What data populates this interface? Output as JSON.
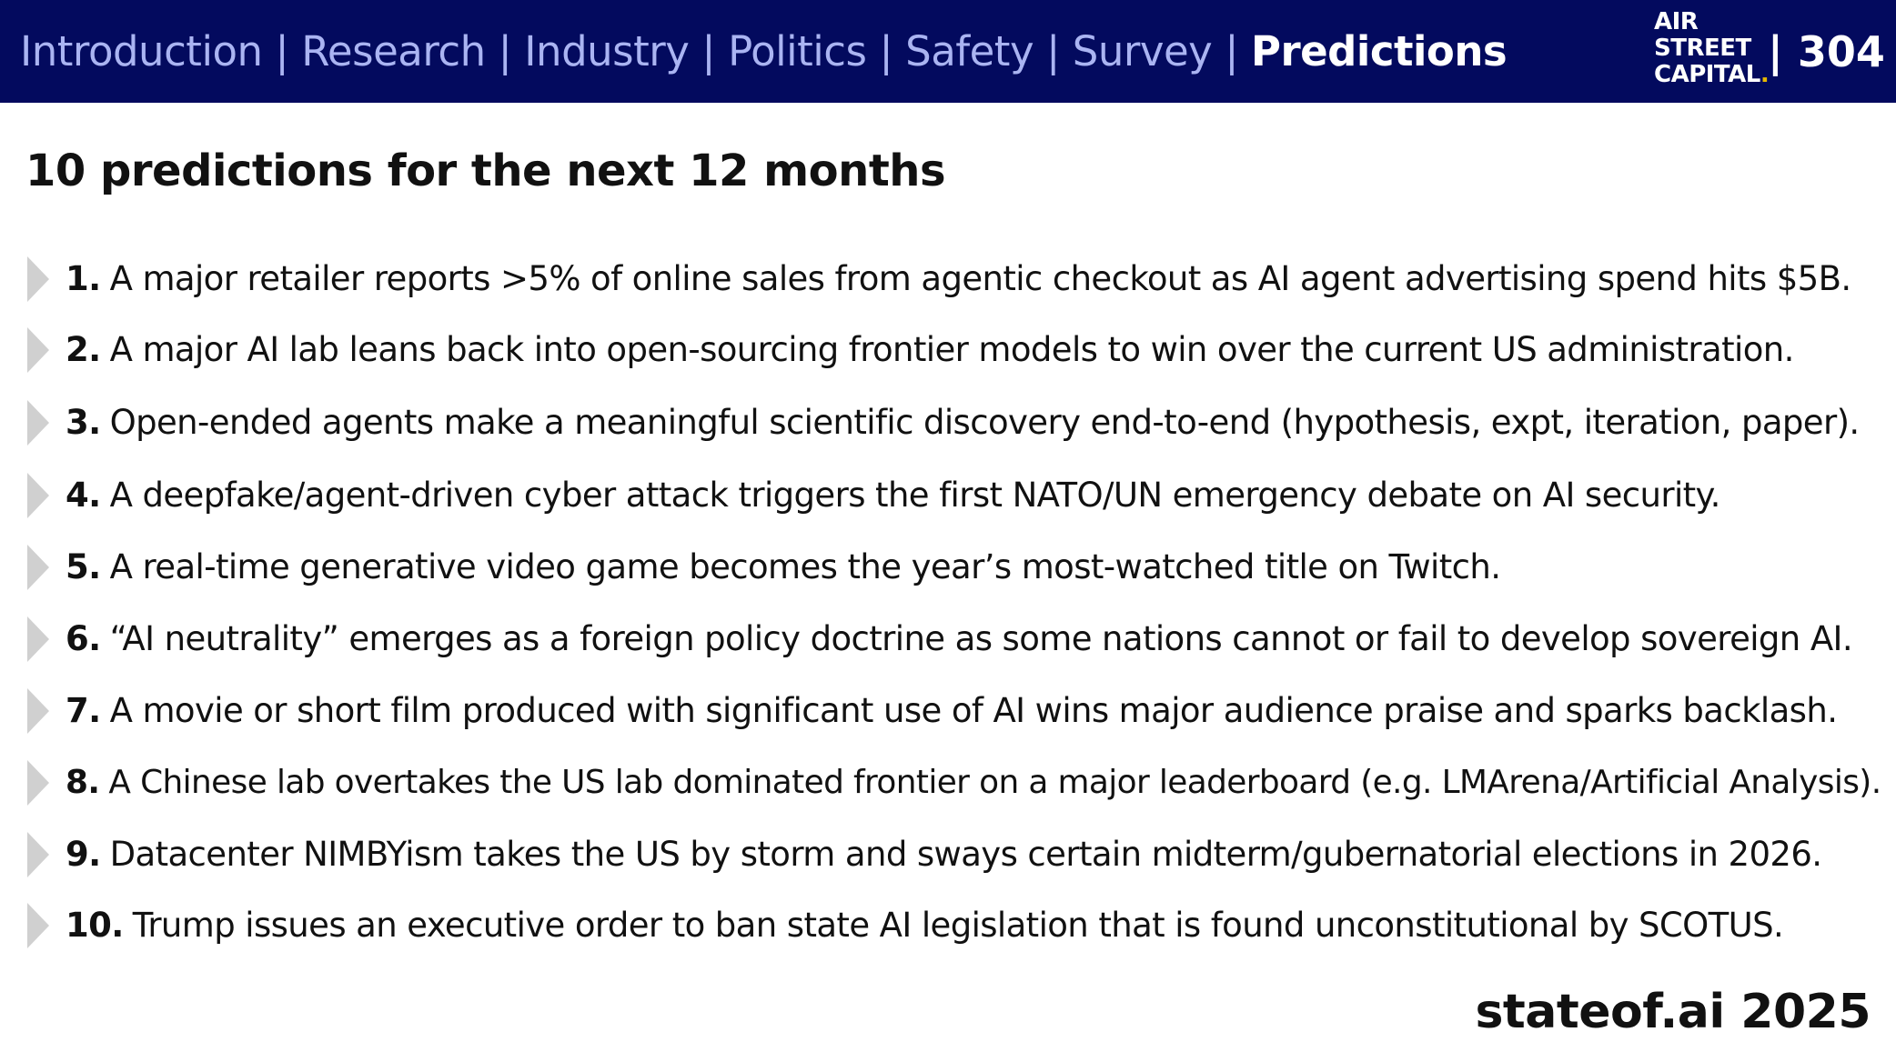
{
  "header": {
    "nav": [
      {
        "label": "Introduction",
        "active": false
      },
      {
        "label": "Research",
        "active": false
      },
      {
        "label": "Industry",
        "active": false
      },
      {
        "label": "Politics",
        "active": false
      },
      {
        "label": "Safety",
        "active": false
      },
      {
        "label": "Survey",
        "active": false
      },
      {
        "label": "Predictions",
        "active": true
      }
    ],
    "separator": "|",
    "logo_lines": [
      "AIR",
      "STREET",
      "CAPITAL"
    ],
    "logo_dot": ".",
    "page_number": "| 304",
    "background_color": "#030a5e",
    "inactive_color": "#aab4f2",
    "active_color": "#ffffff"
  },
  "title": "10 predictions for the next 12 months",
  "predictions": [
    {
      "number": "1.",
      "text": "A major retailer reports >5% of online sales from agentic checkout as AI agent advertising spend hits $5B."
    },
    {
      "number": "2.",
      "text": "A major AI lab leans back into open-sourcing frontier models to win over the current US administration."
    },
    {
      "number": "3.",
      "text": "Open-ended agents make a meaningful scientific discovery end-to-end (hypothesis, expt, iteration, paper)."
    },
    {
      "number": "4.",
      "text": "A deepfake/agent-driven cyber attack triggers the first NATO/UN emergency debate on AI security."
    },
    {
      "number": "5.",
      "text": "A real-time generative video game becomes the year’s most-watched title on Twitch."
    },
    {
      "number": "6.",
      "text": "“AI neutrality” emerges as a foreign policy doctrine as some nations cannot or fail to develop sovereign AI."
    },
    {
      "number": "7.",
      "text": "A movie or short film produced with significant use of AI wins major audience praise and sparks backlash."
    },
    {
      "number": "8.",
      "text": "A Chinese lab overtakes the US lab dominated frontier on a major leaderboard (e.g. LMArena/Artificial Analysis)."
    },
    {
      "number": "9.",
      "text": "Datacenter NIMBYism takes the US by storm and sways certain midterm/gubernatorial elections in 2026."
    },
    {
      "number": "10.",
      "text": "Trump issues an executive order to ban state AI legislation that is found unconstitutional by SCOTUS."
    }
  ],
  "footer": "stateof.ai 2025"
}
